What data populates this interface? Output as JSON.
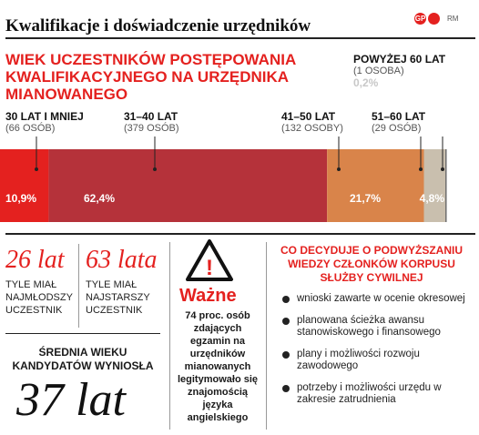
{
  "header": {
    "title": "Kwalifikacje i doświadczenie urzędników",
    "logo_mark": "GP",
    "logo_credit": "RM"
  },
  "chart_data": {
    "type": "bar",
    "title": "WIEK UCZESTNIKÓW POSTĘPOWANIA KWALIFIKACYJNEGO NA URZĘDNIKA MIANOWANEGO",
    "categories": [
      "30 LAT I MNIEJ",
      "31–40 LAT",
      "41–50 LAT",
      "51–60 LAT",
      "POWYŻEJ 60 LAT"
    ],
    "counts": [
      "(66 OSÓB)",
      "(379 OSÓB)",
      "(132 OSOBY)",
      "(29 OSÓB)",
      "(1 OSOBA)"
    ],
    "values": [
      10.9,
      62.4,
      21.7,
      4.8,
      0.2
    ],
    "value_labels": [
      "10,9%",
      "62,4%",
      "21,7%",
      "4,8%",
      "0,2%"
    ],
    "colors": [
      "#e4211f",
      "#b5323a",
      "#d9844a",
      "#c9bfae",
      "#6d6d6d"
    ]
  },
  "stats": {
    "youngest": {
      "value": "26 lat",
      "label": "TYLE MIAŁ NAJMŁODSZY UCZESTNIK"
    },
    "oldest": {
      "value": "63 lata",
      "label": "TYLE MIAŁ NAJSTARSZY UCZESTNIK"
    },
    "average_label": "ŚREDNIA WIEKU KANDYDATÓW WYNIOSŁA",
    "average_value": "37 lat"
  },
  "important": {
    "icon_glyph": "!",
    "title": "Ważne",
    "text": "74 proc. osób zdających egzamin na urzędników mianowanych legitymowało się znajomością języka angielskiego"
  },
  "decisions": {
    "title": "CO DECYDUJE O PODWYŻSZANIU WIEDZY CZŁONKÓW KORPUSU SŁUŻBY CYWILNEJ",
    "items": [
      "wnioski zawarte w ocenie okresowej",
      "planowana ścieżka awansu stanowiskowego i finansowego",
      "plany i możliwości rozwoju zawodowego",
      "potrzeby i możliwości urzędu w zakresie zatrudnienia"
    ]
  }
}
